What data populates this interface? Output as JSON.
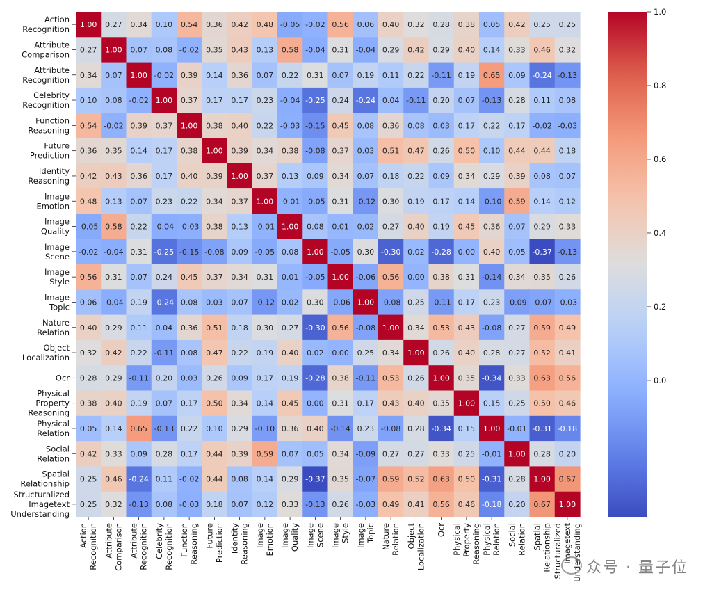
{
  "chart_data": {
    "type": "heatmap",
    "labels": [
      "Action Recognition",
      "Attribute Comparison",
      "Attribute Recognition",
      "Celebrity Recognition",
      "Function Reasoning",
      "Future Prediction",
      "Identity Reasoning",
      "Image Emotion",
      "Image Quality",
      "Image Scene",
      "Image Style",
      "Image Topic",
      "Nature Relation",
      "Object Localization",
      "Ocr",
      "Physical Property Reasoning",
      "Physical Relation",
      "Social Relation",
      "Spatial Relationship",
      "Structuralized Imagetext Understanding"
    ],
    "label_lines": [
      [
        "Action",
        "Recognition"
      ],
      [
        "Attribute",
        "Comparison"
      ],
      [
        "Attribute",
        "Recognition"
      ],
      [
        "Celebrity",
        "Recognition"
      ],
      [
        "Function",
        "Reasoning"
      ],
      [
        "Future",
        "Prediction"
      ],
      [
        "Identity",
        "Reasoning"
      ],
      [
        "Image",
        "Emotion"
      ],
      [
        "Image",
        "Quality"
      ],
      [
        "Image",
        "Scene"
      ],
      [
        "Image",
        "Style"
      ],
      [
        "Image",
        "Topic"
      ],
      [
        "Nature",
        "Relation"
      ],
      [
        "Object",
        "Localization"
      ],
      [
        "Ocr"
      ],
      [
        "Physical",
        "Property",
        "Reasoning"
      ],
      [
        "Physical",
        "Relation"
      ],
      [
        "Social",
        "Relation"
      ],
      [
        "Spatial",
        "Relationship"
      ],
      [
        "Structuralized",
        "Imagetext",
        "Understanding"
      ]
    ],
    "matrix": [
      [
        1.0,
        0.27,
        0.34,
        0.1,
        0.54,
        0.36,
        0.42,
        0.48,
        -0.05,
        -0.02,
        0.56,
        0.06,
        0.4,
        0.32,
        0.28,
        0.38,
        0.05,
        0.42,
        0.25,
        0.25
      ],
      [
        0.27,
        1.0,
        0.07,
        0.08,
        -0.02,
        0.35,
        0.43,
        0.13,
        0.58,
        -0.04,
        0.31,
        -0.04,
        0.29,
        0.42,
        0.29,
        0.4,
        0.14,
        0.33,
        0.46,
        0.32
      ],
      [
        0.34,
        0.07,
        1.0,
        -0.02,
        0.39,
        0.14,
        0.36,
        0.07,
        0.22,
        0.31,
        0.07,
        0.19,
        0.11,
        0.22,
        -0.11,
        0.19,
        0.65,
        0.09,
        -0.24,
        -0.13
      ],
      [
        0.1,
        0.08,
        -0.02,
        1.0,
        0.37,
        0.17,
        0.17,
        0.23,
        -0.04,
        -0.25,
        0.24,
        -0.24,
        0.04,
        -0.11,
        0.2,
        0.07,
        -0.13,
        0.28,
        0.11,
        0.08
      ],
      [
        0.54,
        -0.02,
        0.39,
        0.37,
        1.0,
        0.38,
        0.4,
        0.22,
        -0.03,
        -0.15,
        0.45,
        0.08,
        0.36,
        0.08,
        0.03,
        0.17,
        0.22,
        0.17,
        -0.02,
        -0.03
      ],
      [
        0.36,
        0.35,
        0.14,
        0.17,
        0.38,
        1.0,
        0.39,
        0.34,
        0.38,
        -0.08,
        0.37,
        0.03,
        0.51,
        0.47,
        0.26,
        0.5,
        0.1,
        0.44,
        0.44,
        0.18
      ],
      [
        0.42,
        0.43,
        0.36,
        0.17,
        0.4,
        0.39,
        1.0,
        0.37,
        0.13,
        0.09,
        0.34,
        0.07,
        0.18,
        0.22,
        0.09,
        0.34,
        0.29,
        0.39,
        0.08,
        0.07
      ],
      [
        0.48,
        0.13,
        0.07,
        0.23,
        0.22,
        0.34,
        0.37,
        1.0,
        -0.01,
        -0.05,
        0.31,
        -0.12,
        0.3,
        0.19,
        0.17,
        0.14,
        -0.1,
        0.59,
        0.14,
        0.12
      ],
      [
        -0.05,
        0.58,
        0.22,
        -0.04,
        -0.03,
        0.38,
        0.13,
        -0.01,
        1.0,
        0.08,
        0.01,
        0.02,
        0.27,
        0.4,
        0.19,
        0.45,
        0.36,
        0.07,
        0.29,
        0.33
      ],
      [
        -0.02,
        -0.04,
        0.31,
        -0.25,
        -0.15,
        -0.08,
        0.09,
        -0.05,
        0.08,
        1.0,
        -0.05,
        0.3,
        -0.3,
        0.02,
        -0.28,
        0.0,
        0.4,
        0.05,
        -0.37,
        -0.13
      ],
      [
        0.56,
        0.31,
        0.07,
        0.24,
        0.45,
        0.37,
        0.34,
        0.31,
        0.01,
        -0.05,
        1.0,
        -0.06,
        0.56,
        0.0,
        0.38,
        0.31,
        -0.14,
        0.34,
        0.35,
        0.26
      ],
      [
        0.06,
        -0.04,
        0.19,
        -0.24,
        0.08,
        0.03,
        0.07,
        -0.12,
        0.02,
        0.3,
        -0.06,
        1.0,
        -0.08,
        0.25,
        -0.11,
        0.17,
        0.23,
        -0.09,
        -0.07,
        -0.03
      ],
      [
        0.4,
        0.29,
        0.11,
        0.04,
        0.36,
        0.51,
        0.18,
        0.3,
        0.27,
        -0.3,
        0.56,
        -0.08,
        1.0,
        0.34,
        0.53,
        0.43,
        -0.08,
        0.27,
        0.59,
        0.49
      ],
      [
        0.32,
        0.42,
        0.22,
        -0.11,
        0.08,
        0.47,
        0.22,
        0.19,
        0.4,
        0.02,
        0.0,
        0.25,
        0.34,
        1.0,
        0.26,
        0.4,
        0.28,
        0.27,
        0.52,
        0.41
      ],
      [
        0.28,
        0.29,
        -0.11,
        0.2,
        0.03,
        0.26,
        0.09,
        0.17,
        0.19,
        -0.28,
        0.38,
        -0.11,
        0.53,
        0.26,
        1.0,
        0.35,
        -0.34,
        0.33,
        0.63,
        0.56
      ],
      [
        0.38,
        0.4,
        0.19,
        0.07,
        0.17,
        0.5,
        0.34,
        0.14,
        0.45,
        0.0,
        0.31,
        0.17,
        0.43,
        0.4,
        0.35,
        1.0,
        0.15,
        0.25,
        0.5,
        0.46
      ],
      [
        0.05,
        0.14,
        0.65,
        -0.13,
        0.22,
        0.1,
        0.29,
        -0.1,
        0.36,
        0.4,
        -0.14,
        0.23,
        -0.08,
        0.28,
        -0.34,
        0.15,
        1.0,
        -0.01,
        -0.31,
        -0.18
      ],
      [
        0.42,
        0.33,
        0.09,
        0.28,
        0.17,
        0.44,
        0.39,
        0.59,
        0.07,
        0.05,
        0.34,
        -0.09,
        0.27,
        0.27,
        0.33,
        0.25,
        -0.01,
        1.0,
        0.28,
        0.2
      ],
      [
        0.25,
        0.46,
        -0.24,
        0.11,
        -0.02,
        0.44,
        0.08,
        0.14,
        0.29,
        -0.37,
        0.35,
        -0.07,
        0.59,
        0.52,
        0.63,
        0.5,
        -0.31,
        0.28,
        1.0,
        0.67
      ],
      [
        0.25,
        0.32,
        -0.13,
        0.08,
        -0.03,
        0.18,
        0.07,
        0.12,
        0.33,
        -0.13,
        0.26,
        -0.03,
        0.49,
        0.41,
        0.56,
        0.46,
        -0.18,
        0.2,
        0.67,
        1.0
      ]
    ],
    "value_format": "2 decimals",
    "colormap": "coolwarm",
    "colorbar": {
      "vmin": -0.37,
      "vmax": 1.0,
      "ticks": [
        0.0,
        0.2,
        0.4,
        0.6,
        0.8,
        1.0
      ],
      "tick_labels": [
        "0.0",
        "0.2",
        "0.4",
        "0.6",
        "0.8",
        "1.0"
      ]
    },
    "title": "",
    "xlabel": "",
    "ylabel": ""
  },
  "watermark": {
    "text": "众号 · 量子位",
    "icon": "wechat-logo-icon"
  }
}
